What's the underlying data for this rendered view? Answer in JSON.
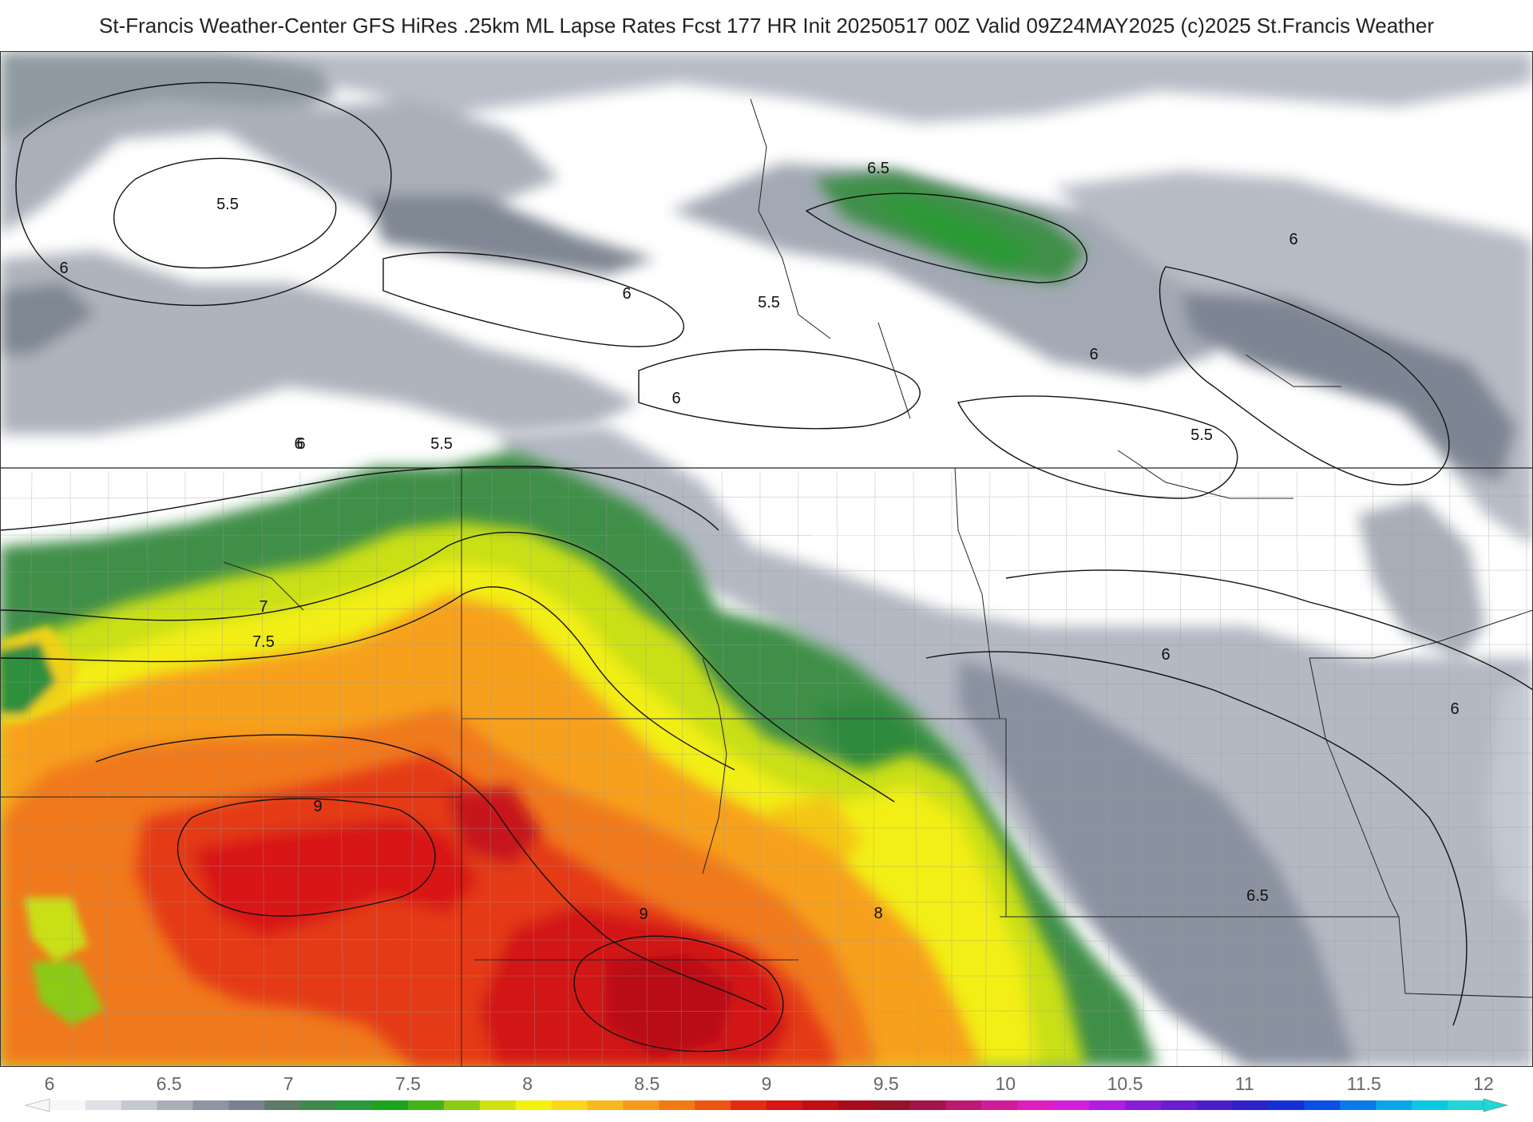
{
  "title": "St-Francis Weather-Center GFS HiRes .25km ML Lapse Rates  Fcst 177 HR Init 20250517 00Z  Valid 09Z24MAY2025    (c)2025 St.Francis Weather",
  "contour_labels": [
    "5.5",
    "6",
    "6",
    "5.5",
    "6",
    "6.5",
    "6",
    "6",
    "5.5",
    "6",
    "6",
    "5.5",
    "7",
    "7.5",
    "9",
    "9",
    "8",
    "6.5",
    "6",
    "6"
  ],
  "colorbar": {
    "min": 6,
    "max": 12,
    "tick_labels": [
      "6",
      "6.5",
      "7",
      "7.5",
      "8",
      "8.5",
      "9",
      "9.5",
      "10",
      "10.5",
      "11",
      "11.5",
      "12"
    ],
    "colors": [
      "#f7f7f9",
      "#dfe1e6",
      "#c4c8d0",
      "#a9aeb8",
      "#8f95a1",
      "#7a8290",
      "#607a68",
      "#3f8a4e",
      "#2b9a3a",
      "#1ca41e",
      "#42b41a",
      "#8cca14",
      "#cfe212",
      "#f4f20f",
      "#fbd81a",
      "#f8b91e",
      "#f79a1a",
      "#f27a14",
      "#ee5512",
      "#e52b10",
      "#d81515",
      "#c10f16",
      "#a80c1c",
      "#961226",
      "#a3154a",
      "#bb1a70",
      "#d01c98",
      "#e01ec0",
      "#d31ee0",
      "#b01ee0",
      "#8a1ed8",
      "#6a1ed0",
      "#4a1ec8",
      "#2e22c8",
      "#1530d8",
      "#0a50e8",
      "#0a7ae8",
      "#0aa6e8",
      "#0ac8e4",
      "#20d6d6"
    ]
  }
}
